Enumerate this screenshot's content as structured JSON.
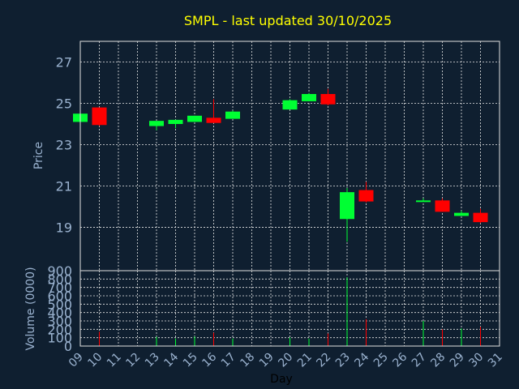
{
  "colors": {
    "background": "#0f1f30",
    "title": "#ffff00",
    "axis_text": "#9ab2cf",
    "xlabel": "#000000",
    "up": "#00ff33",
    "down": "#ff0000",
    "grid": "#e8e8e8"
  },
  "chart_data": {
    "type": "candlestick",
    "title": "SMPL - last updated 30/10/2025",
    "price_panel": {
      "ylabel": "Price",
      "ylim": [
        16.9,
        28.0
      ],
      "yticks": [
        19,
        21,
        23,
        25,
        27
      ],
      "grid": true
    },
    "volume_panel": {
      "ylabel": "Volume (0000)",
      "ylim": [
        0,
        900
      ],
      "yticks": [
        0,
        100,
        200,
        300,
        400,
        500,
        600,
        700,
        800,
        900
      ],
      "grid": true
    },
    "xlabel": "Day",
    "xlim": [
      9,
      31
    ],
    "xticks": [
      "09",
      "10",
      "11",
      "12",
      "13",
      "14",
      "15",
      "16",
      "17",
      "18",
      "19",
      "20",
      "21",
      "22",
      "23",
      "24",
      "25",
      "26",
      "27",
      "28",
      "29",
      "30",
      "31"
    ],
    "candles": [
      {
        "day": 9,
        "open": 24.1,
        "high": 24.5,
        "low": 24.1,
        "close": 24.5,
        "volume": 0
      },
      {
        "day": 10,
        "open": 24.8,
        "high": 24.8,
        "low": 23.9,
        "close": 23.95,
        "volume": 170
      },
      {
        "day": 13,
        "open": 23.9,
        "high": 24.1,
        "low": 23.7,
        "close": 24.15,
        "volume": 110
      },
      {
        "day": 14,
        "open": 24.0,
        "high": 24.2,
        "low": 23.8,
        "close": 24.2,
        "volume": 90
      },
      {
        "day": 15,
        "open": 24.1,
        "high": 24.4,
        "low": 24.1,
        "close": 24.4,
        "volume": 115
      },
      {
        "day": 16,
        "open": 24.3,
        "high": 25.2,
        "low": 24.05,
        "close": 24.05,
        "volume": 160
      },
      {
        "day": 17,
        "open": 24.25,
        "high": 24.65,
        "low": 24.25,
        "close": 24.6,
        "volume": 90
      },
      {
        "day": 20,
        "open": 24.7,
        "high": 25.2,
        "low": 24.7,
        "close": 25.15,
        "volume": 100
      },
      {
        "day": 21,
        "open": 25.1,
        "high": 25.5,
        "low": 25.1,
        "close": 25.45,
        "volume": 90
      },
      {
        "day": 22,
        "open": 25.45,
        "high": 25.7,
        "low": 24.9,
        "close": 24.95,
        "volume": 150
      },
      {
        "day": 23,
        "open": 19.4,
        "high": 20.9,
        "low": 18.3,
        "close": 20.7,
        "volume": 820
      },
      {
        "day": 24,
        "open": 20.8,
        "high": 21.2,
        "low": 20.2,
        "close": 20.25,
        "volume": 320
      },
      {
        "day": 27,
        "open": 20.25,
        "high": 20.4,
        "low": 20.25,
        "close": 20.3,
        "volume": 300
      },
      {
        "day": 28,
        "open": 20.3,
        "high": 20.4,
        "low": 19.75,
        "close": 19.75,
        "volume": 200
      },
      {
        "day": 29,
        "open": 19.55,
        "high": 19.8,
        "low": 19.55,
        "close": 19.7,
        "volume": 210
      },
      {
        "day": 30,
        "open": 19.7,
        "high": 19.9,
        "low": 19.2,
        "close": 19.25,
        "volume": 230
      }
    ]
  }
}
